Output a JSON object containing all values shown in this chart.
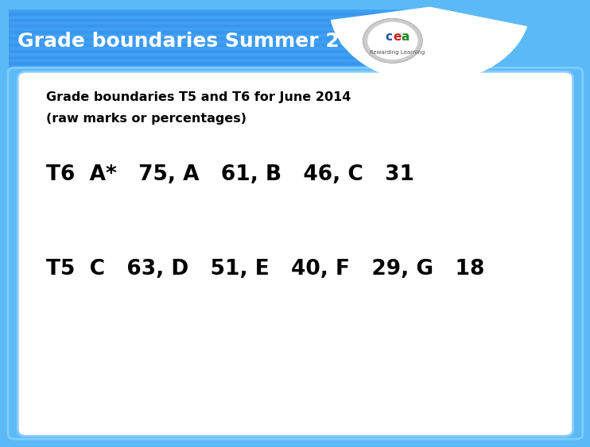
{
  "title": "Grade boundaries Summer 2014",
  "title_color": "#FFFFFF",
  "header_font_size": 18,
  "subtitle_line1": "Grade boundaries T5 and T6 for June 2014",
  "subtitle_line2": "(raw marks or percentages)",
  "subtitle_font_size": 11.5,
  "subtitle_font_weight": "bold",
  "line1": "T6  A*   75, A   61, B   46, C   31",
  "line2": "T5  C   63, D   51, E   40, F   29, G   18",
  "line_font_size": 19,
  "content_bg_color": "#FFFFFF",
  "outer_bg_color": "#5BBAF5",
  "header_bg_color": "#4499EE",
  "text_color": "#000000",
  "logo_bg_color": "#FFFFFF",
  "cea_text": "cea",
  "rewarding_text": "Rewarding Learning"
}
